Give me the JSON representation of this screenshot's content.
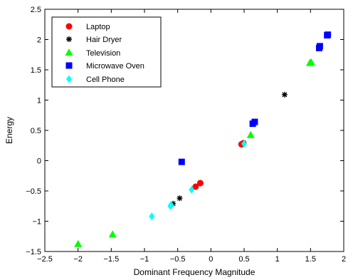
{
  "chart_data": {
    "type": "scatter",
    "title": "",
    "xlabel": "Dominant Frequency Magnitude",
    "ylabel": "Energy",
    "xlim": [
      -2.5,
      2
    ],
    "ylim": [
      -1.5,
      2.5
    ],
    "xticks": [
      -2.5,
      -2,
      -1.5,
      -1,
      -0.5,
      0,
      0.5,
      1,
      1.5,
      2
    ],
    "xtick_labels": [
      "−2.5",
      "−2",
      "−1.5",
      "−1",
      "−0.5",
      "0",
      "0.5",
      "1",
      "1.5",
      "2"
    ],
    "yticks": [
      -1.5,
      -1,
      -0.5,
      0,
      0.5,
      1,
      1.5,
      2,
      2.5
    ],
    "ytick_labels": [
      "−1.5",
      "−1",
      "−0.5",
      "0",
      "0.5",
      "1",
      "1.5",
      "2",
      "2.5"
    ],
    "grid": false,
    "legend_position": "top-left",
    "series": [
      {
        "name": "Laptop",
        "marker": "circle",
        "color": "#ff0000",
        "points": [
          [
            -0.16,
            -0.37
          ],
          [
            -0.23,
            -0.43
          ],
          [
            0.46,
            0.27
          ],
          [
            0.49,
            0.29
          ]
        ]
      },
      {
        "name": "Hair Dryer",
        "marker": "star",
        "color": "#000000",
        "points": [
          [
            -0.47,
            -0.62
          ],
          [
            -0.57,
            -0.71
          ],
          [
            1.11,
            1.09
          ]
        ]
      },
      {
        "name": "Television",
        "marker": "triangle",
        "color": "#00ff00",
        "points": [
          [
            -2.0,
            -1.38
          ],
          [
            -1.48,
            -1.22
          ],
          [
            0.6,
            0.42
          ],
          [
            1.49,
            1.61
          ],
          [
            1.51,
            1.62
          ]
        ]
      },
      {
        "name": "Microwave Oven",
        "marker": "square",
        "color": "#0000ff",
        "points": [
          [
            -0.44,
            -0.02
          ],
          [
            0.63,
            0.61
          ],
          [
            0.66,
            0.64
          ],
          [
            1.63,
            1.86
          ],
          [
            1.64,
            1.89
          ],
          [
            1.75,
            2.07
          ],
          [
            1.76,
            2.08
          ]
        ]
      },
      {
        "name": "Cell Phone",
        "marker": "diamond",
        "color": "#00ffff",
        "points": [
          [
            -0.29,
            -0.48
          ],
          [
            -0.61,
            -0.75
          ],
          [
            -0.6,
            -0.73
          ],
          [
            -0.89,
            -0.92
          ],
          [
            0.5,
            0.28
          ]
        ]
      }
    ]
  }
}
